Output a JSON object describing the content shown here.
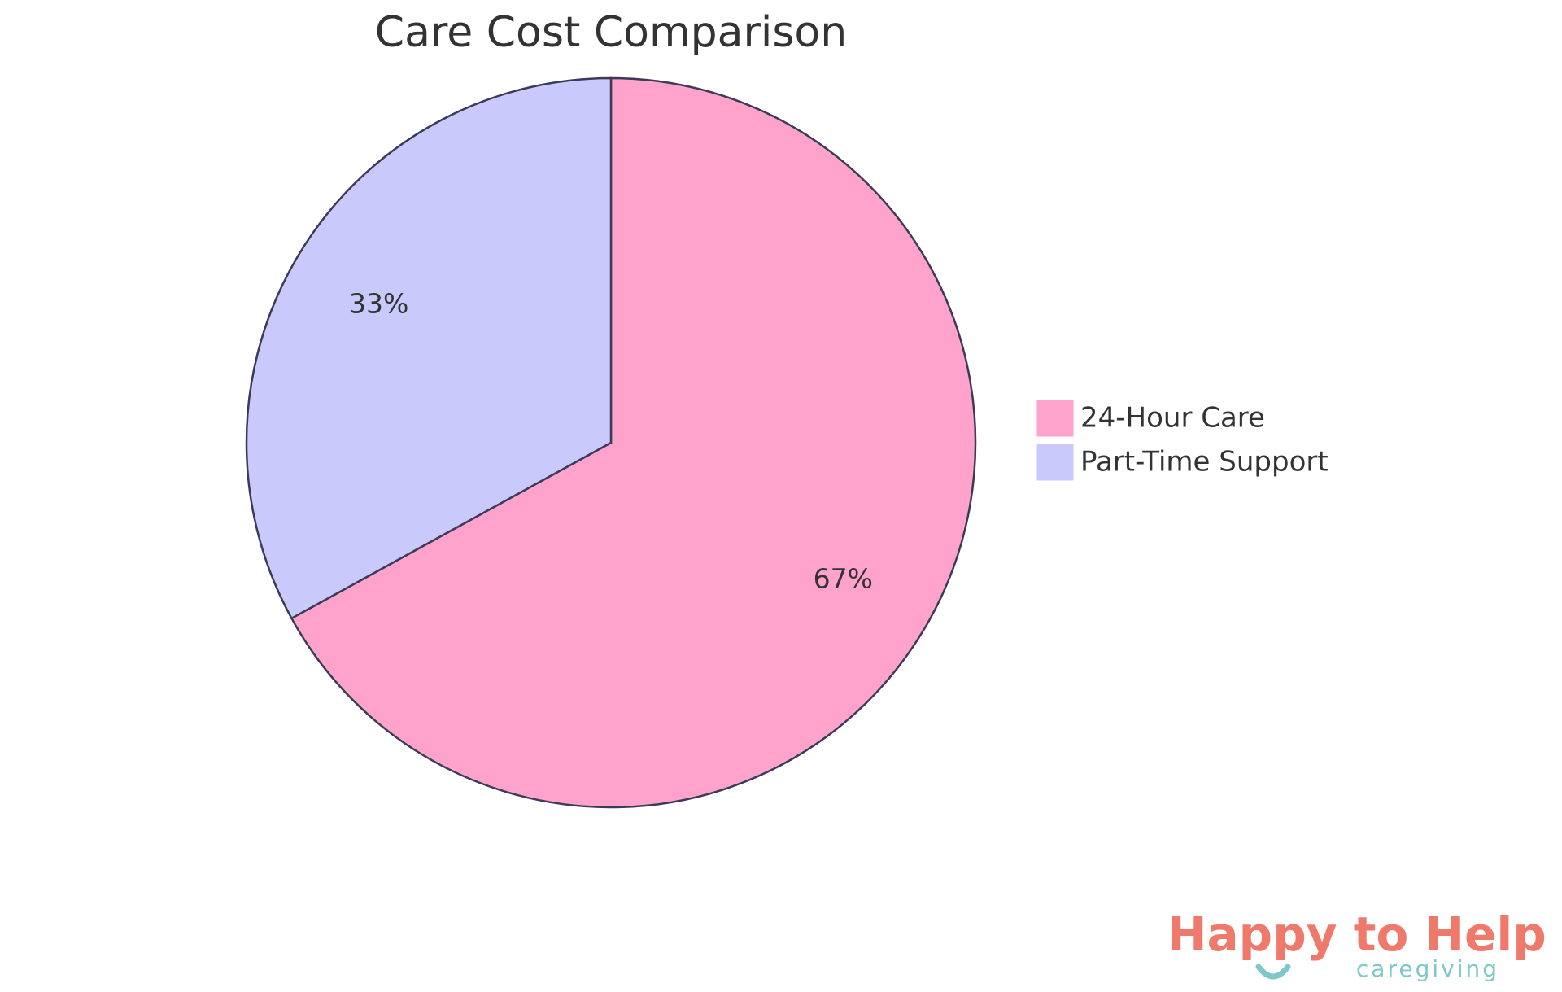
{
  "chart_data": {
    "type": "pie",
    "title": "Care Cost Comparison",
    "categories": [
      "24-Hour Care",
      "Part-Time Support"
    ],
    "values": [
      67,
      33
    ],
    "value_labels": [
      "67%",
      "33%"
    ],
    "colors": [
      "#ffa3cd",
      "#c9c9fc"
    ]
  },
  "logo": {
    "title": "Happy to Help",
    "subtitle": "caregiving"
  }
}
